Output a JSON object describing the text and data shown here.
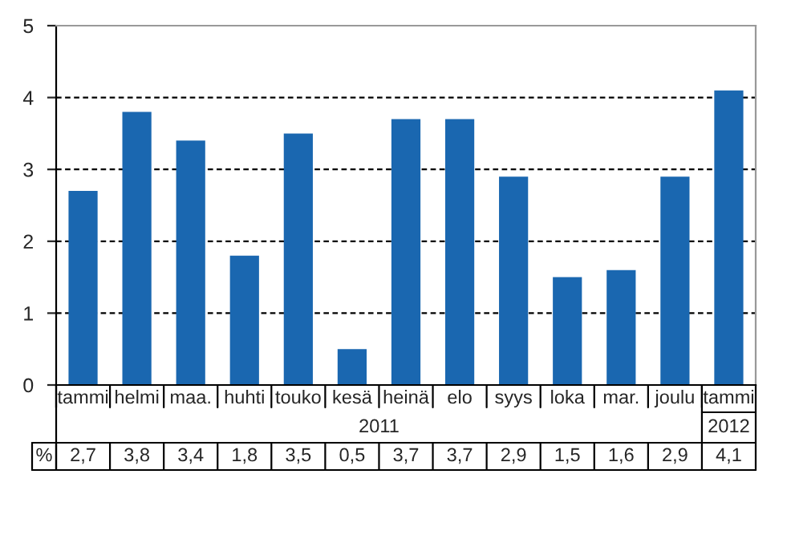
{
  "chart_data": {
    "type": "bar",
    "categories": [
      "tammi",
      "helmi",
      "maa.",
      "huhti",
      "touko",
      "kesä",
      "heinä",
      "elo",
      "syys",
      "loka",
      "mar.",
      "joulu",
      "tammi"
    ],
    "values": [
      2.7,
      3.8,
      3.4,
      1.8,
      3.5,
      0.5,
      3.7,
      3.7,
      2.9,
      1.5,
      1.6,
      2.9,
      4.1
    ],
    "value_labels": [
      "2,7",
      "3,8",
      "3,4",
      "1,8",
      "3,5",
      "0,5",
      "3,7",
      "3,7",
      "2,9",
      "1,5",
      "1,6",
      "2,9",
      "4,1"
    ],
    "color": "#1a67b0",
    "ylim": [
      0,
      5
    ],
    "yticks": [
      0,
      1,
      2,
      3,
      4,
      5
    ],
    "grid": "y",
    "annotations": [
      "%",
      "2011",
      "2012"
    ]
  }
}
